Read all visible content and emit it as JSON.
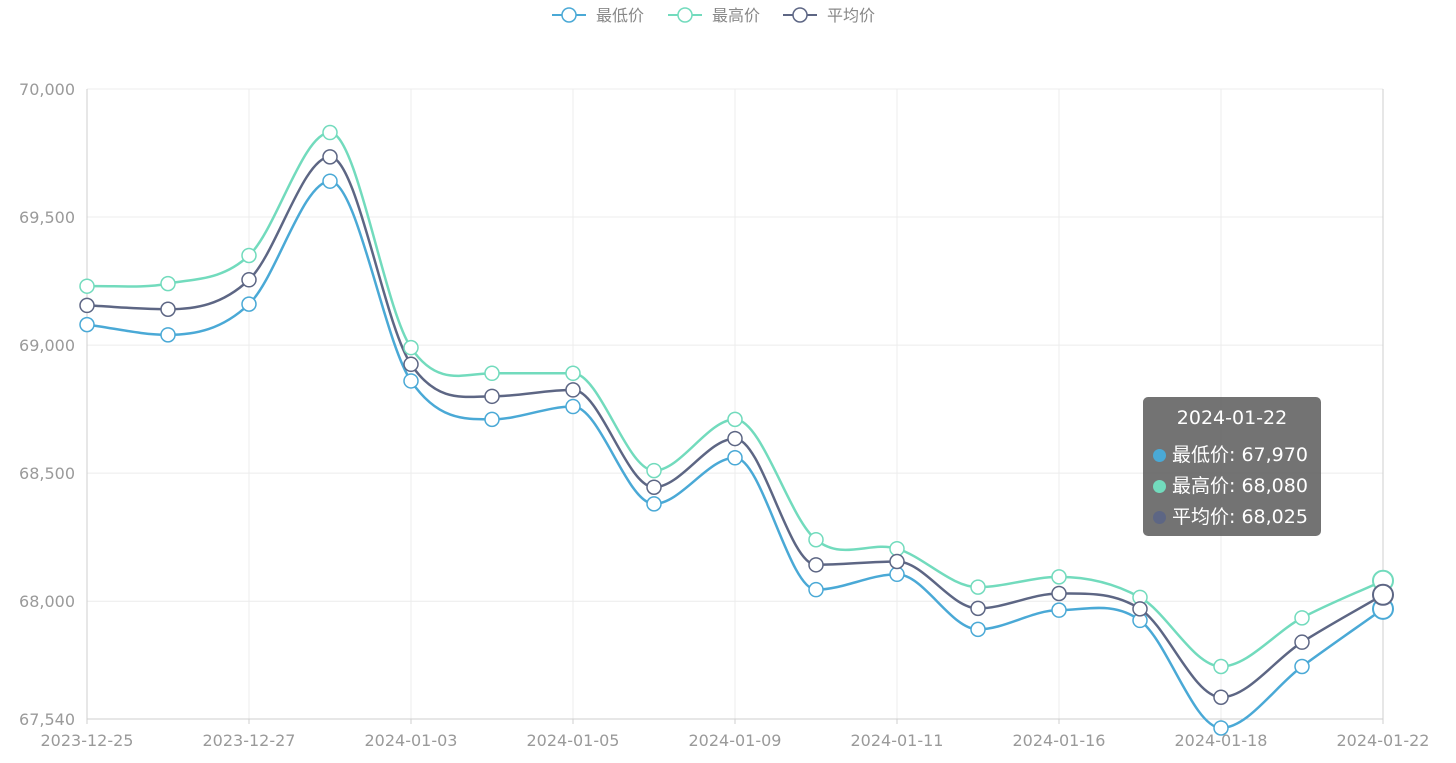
{
  "chart_data": {
    "type": "line",
    "x": [
      "2023-12-25",
      "2023-12-26",
      "2023-12-27",
      "2023-12-28",
      "2024-01-03",
      "2024-01-04",
      "2024-01-05",
      "2024-01-08",
      "2024-01-09",
      "2024-01-10",
      "2024-01-11",
      "2024-01-12",
      "2024-01-16",
      "2024-01-17",
      "2024-01-18",
      "2024-01-19",
      "2024-01-22"
    ],
    "x_tick_labels": [
      "2023-12-25",
      "2023-12-27",
      "2024-01-03",
      "2024-01-05",
      "2024-01-09",
      "2024-01-11",
      "2024-01-16",
      "2024-01-18",
      "2024-01-22"
    ],
    "y_tick_labels": [
      "70,000",
      "69,500",
      "69,000",
      "68,500",
      "68,000",
      "67,540"
    ],
    "ylim": [
      67540,
      70000
    ],
    "grid": true,
    "legend_position": "top-center",
    "series": [
      {
        "name": "最低价",
        "color": "#4aa9d6",
        "values": [
          69080,
          69040,
          69160,
          69640,
          68860,
          68710,
          68760,
          68380,
          68560,
          68045,
          68105,
          67890,
          67965,
          67925,
          67505,
          67745,
          67970
        ]
      },
      {
        "name": "最高价",
        "color": "#72dbbd",
        "values": [
          69230,
          69240,
          69350,
          69830,
          68990,
          68890,
          68890,
          68510,
          68710,
          68240,
          68205,
          68055,
          68095,
          68015,
          67745,
          67935,
          68080
        ]
      },
      {
        "name": "平均价",
        "color": "#5d6684",
        "values": [
          69155,
          69140,
          69255,
          69735,
          68925,
          68800,
          68825,
          68445,
          68635,
          68142,
          68155,
          67972,
          68030,
          67970,
          67625,
          67840,
          68025
        ]
      }
    ],
    "tooltip": {
      "title": "2024-01-22",
      "rows": [
        {
          "label": "最低价: 67,970",
          "color": "#4aa9d6"
        },
        {
          "label": "最高价: 68,080",
          "color": "#72dbbd"
        },
        {
          "label": "平均价: 68,025",
          "color": "#5d6684"
        }
      ]
    }
  }
}
